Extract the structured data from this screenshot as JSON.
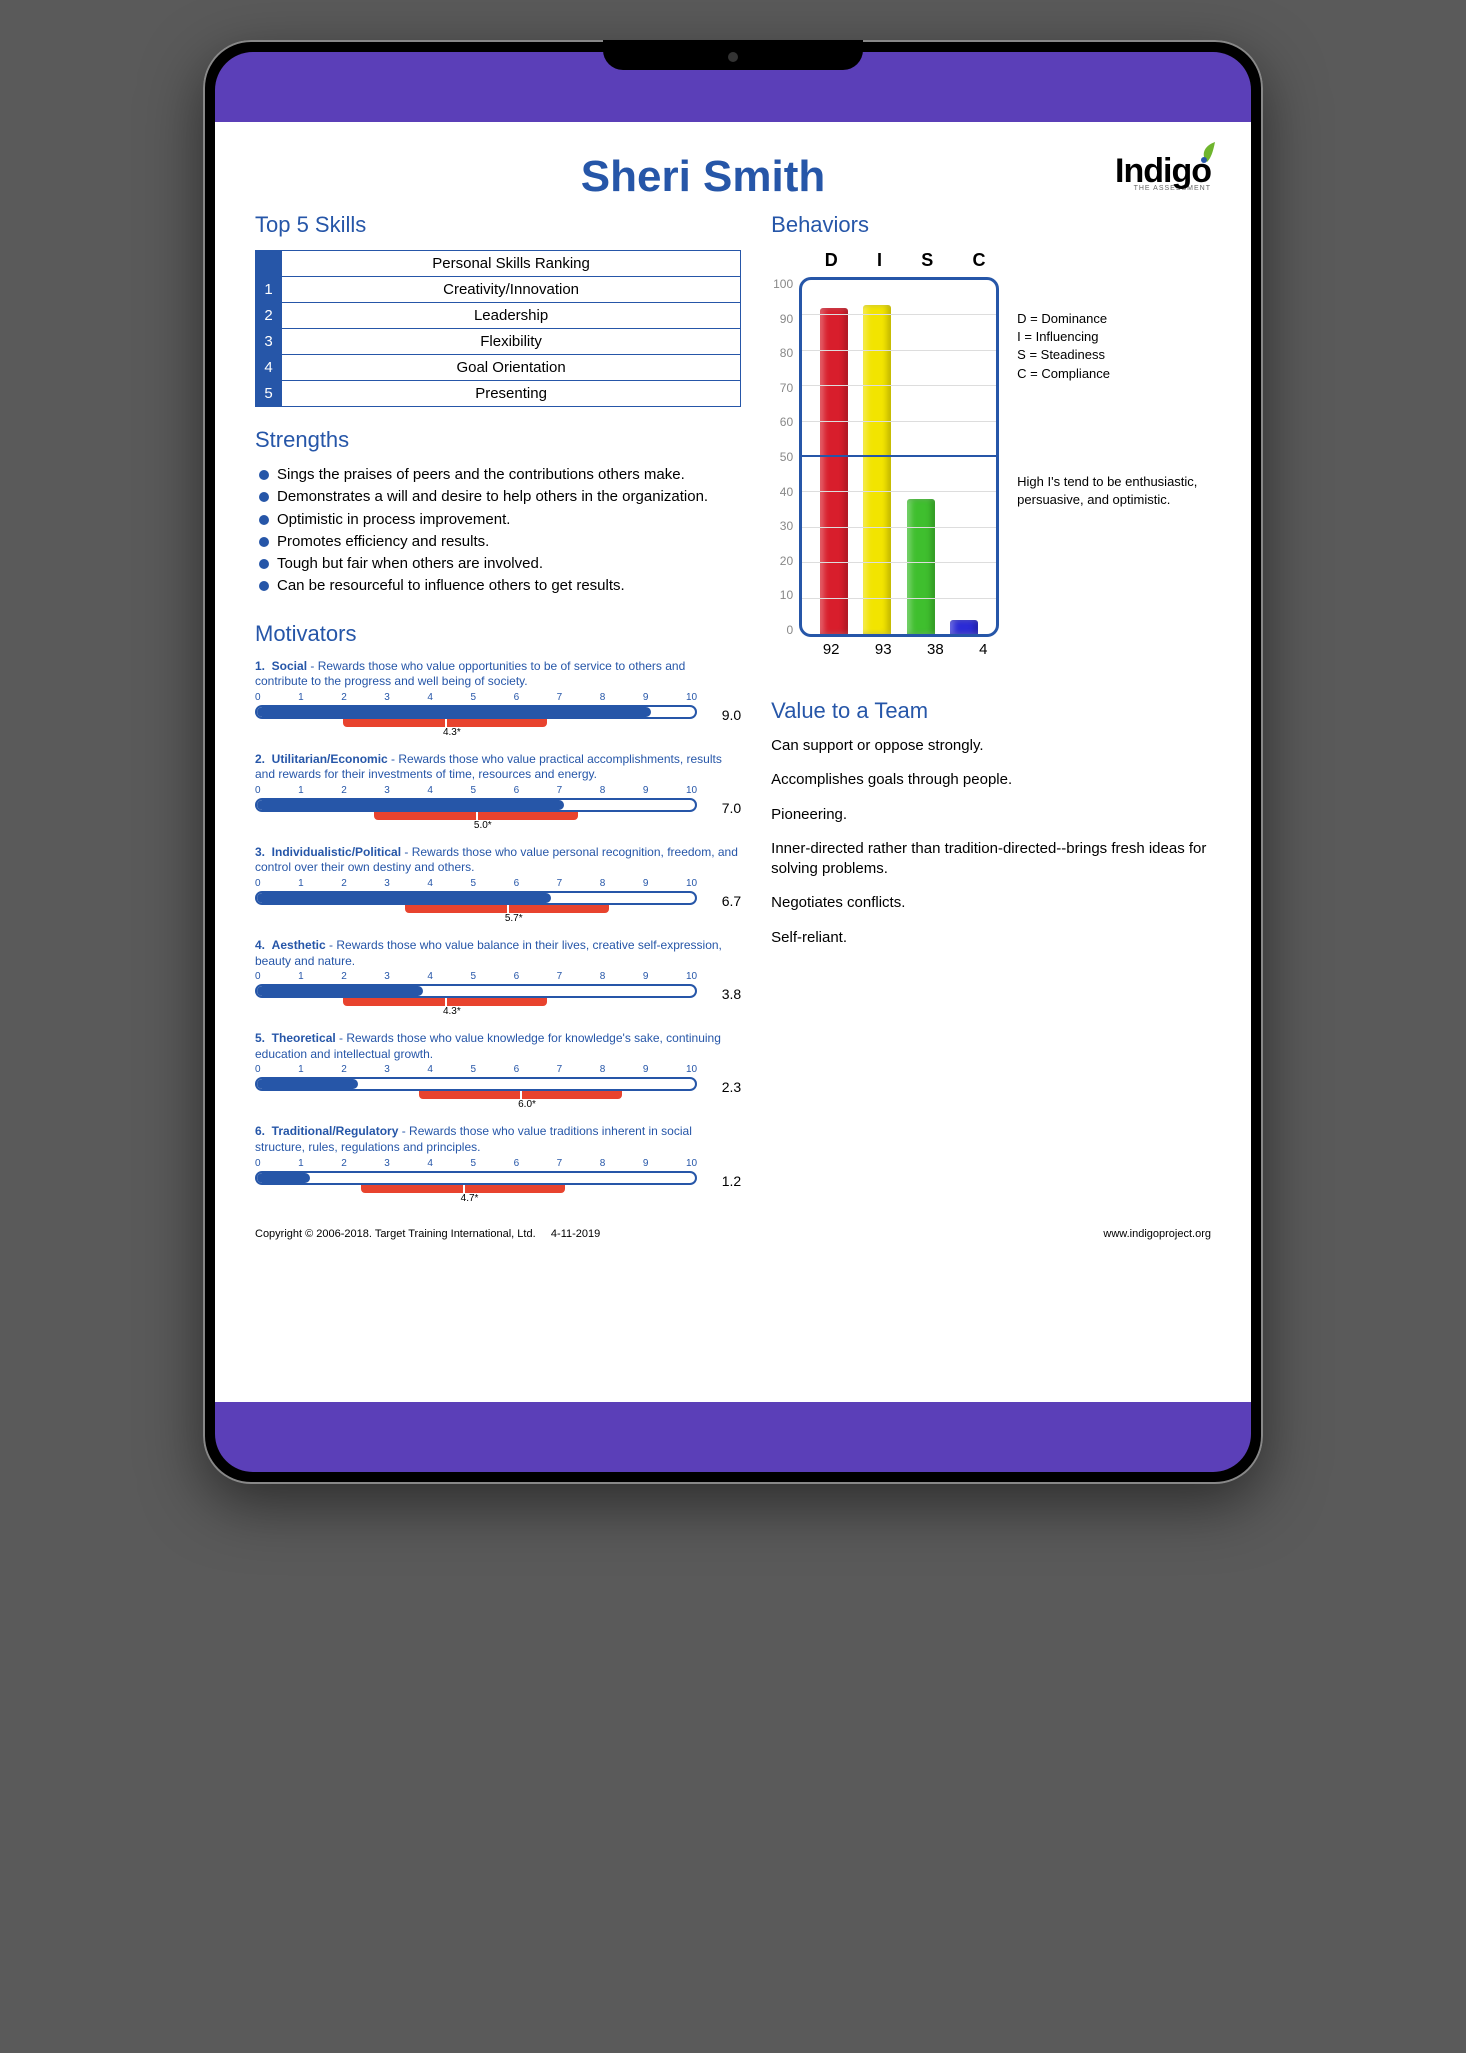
{
  "title": "Sheri Smith",
  "logo": {
    "text": "Indigo",
    "subtitle": "THE ASSESSMENT",
    "leaf_color": "#6fb52e",
    "dot_color": "#2656a8"
  },
  "colors": {
    "primary": "#2656a8",
    "purple": "#5b3fb8",
    "red_norm": "#e8432e"
  },
  "skills": {
    "title": "Top 5 Skills",
    "header": "Personal Skills Ranking",
    "rows": [
      {
        "n": "1",
        "label": "Creativity/Innovation"
      },
      {
        "n": "2",
        "label": "Leadership"
      },
      {
        "n": "3",
        "label": "Flexibility"
      },
      {
        "n": "4",
        "label": "Goal Orientation"
      },
      {
        "n": "5",
        "label": "Presenting"
      }
    ]
  },
  "strengths": {
    "title": "Strengths",
    "items": [
      "Sings the praises of peers and the contributions others make.",
      "Demonstrates a will and desire to help others in the organization.",
      "Optimistic in process improvement.",
      "Promotes efficiency and results.",
      "Tough but fair when others are involved.",
      "Can be resourceful to influence others to get results."
    ]
  },
  "behaviors": {
    "title": "Behaviors",
    "letters": [
      "D",
      "I",
      "S",
      "C"
    ],
    "ymax": 100,
    "yticks": [
      0,
      10,
      20,
      30,
      40,
      50,
      60,
      70,
      80,
      90,
      100
    ],
    "midline": 50,
    "bars": [
      {
        "value": 92,
        "color": "#d81e2c"
      },
      {
        "value": 93,
        "color": "#f2e400"
      },
      {
        "value": 38,
        "color": "#3fbf2e"
      },
      {
        "value": 4,
        "color": "#2b2bd6"
      }
    ],
    "legend": [
      "D = Dominance",
      "I = Influencing",
      "S = Steadiness",
      "C = Compliance"
    ],
    "note": "High I's tend to be enthusiastic, persuasive, and optimistic."
  },
  "motivators": {
    "title": "Motivators",
    "scale_labels": [
      "0",
      "1",
      "2",
      "3",
      "4",
      "5",
      "6",
      "7",
      "8",
      "9",
      "10"
    ],
    "scale_max": 10,
    "items": [
      {
        "n": "1",
        "name": "Social",
        "desc": "Rewards those who value opportunities to be of service to others and contribute to the progress and well being of society.",
        "score": 9.0,
        "score_label": "9.0",
        "norm_center": 4.3,
        "norm_label": "4.3*",
        "norm_lo": 2.0,
        "norm_hi": 6.6
      },
      {
        "n": "2",
        "name": "Utilitarian/Economic",
        "desc": "Rewards those who value practical accomplishments, results and rewards for their investments of time, resources and energy.",
        "score": 7.0,
        "score_label": "7.0",
        "norm_center": 5.0,
        "norm_label": "5.0*",
        "norm_lo": 2.7,
        "norm_hi": 7.3
      },
      {
        "n": "3",
        "name": "Individualistic/Political",
        "desc": "Rewards those who value personal recognition, freedom, and control over their own destiny and others.",
        "score": 6.7,
        "score_label": "6.7",
        "norm_center": 5.7,
        "norm_label": "5.7*",
        "norm_lo": 3.4,
        "norm_hi": 8.0
      },
      {
        "n": "4",
        "name": "Aesthetic",
        "desc": "Rewards those who value balance in their lives, creative self-expression, beauty and nature.",
        "score": 3.8,
        "score_label": "3.8",
        "norm_center": 4.3,
        "norm_label": "4.3*",
        "norm_lo": 2.0,
        "norm_hi": 6.6
      },
      {
        "n": "5",
        "name": "Theoretical",
        "desc": "Rewards those who value knowledge for knowledge's sake, continuing education and intellectual growth.",
        "score": 2.3,
        "score_label": "2.3",
        "norm_center": 6.0,
        "norm_label": "6.0*",
        "norm_lo": 3.7,
        "norm_hi": 8.3
      },
      {
        "n": "6",
        "name": "Traditional/Regulatory",
        "desc": "Rewards those who value traditions inherent in social structure, rules, regulations and principles.",
        "score": 1.2,
        "score_label": "1.2",
        "norm_center": 4.7,
        "norm_label": "4.7*",
        "norm_lo": 2.4,
        "norm_hi": 7.0
      }
    ]
  },
  "value_team": {
    "title": "Value to a Team",
    "items": [
      "Can support or oppose strongly.",
      "Accomplishes goals through people.",
      "Pioneering.",
      "Inner-directed rather than tradition-directed--brings fresh ideas for solving problems.",
      "Negotiates conflicts.",
      "Self-reliant."
    ]
  },
  "footer": {
    "copyright": "Copyright © 2006-2018. Target Training International, Ltd.",
    "date": "4-11-2019",
    "url": "www.indigoproject.org"
  }
}
